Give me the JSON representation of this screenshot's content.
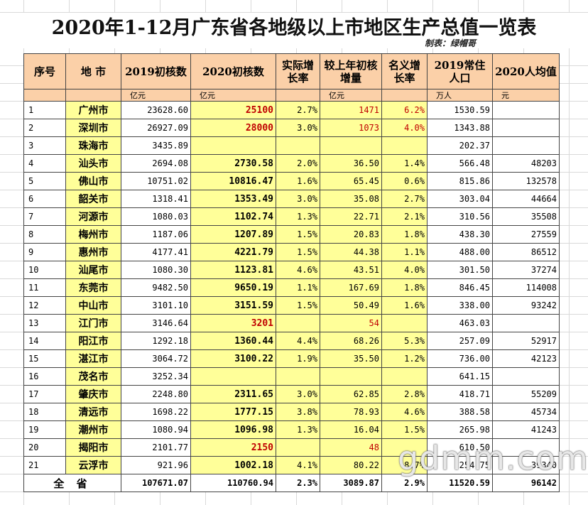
{
  "header": {
    "title": "2020年1-12月广东省各地级以上市地区生产总值一览表",
    "maker": "制表：绿帽哥"
  },
  "table": {
    "headers": [
      "序号",
      "地  市",
      "2019初核数",
      "2020初核数",
      "实际增长率",
      "较上年初核增量",
      "名义增长率",
      "2019常住人口",
      "2020人均值"
    ],
    "units": [
      null,
      null,
      "亿元",
      "亿元",
      null,
      "亿元",
      null,
      "万人",
      "元"
    ],
    "rows": [
      [
        "1",
        "广州市",
        "23628.60",
        {
          "text": "25100",
          "color": "#c00000"
        },
        "2.7%",
        {
          "text": "1471",
          "color": "#c00000"
        },
        {
          "text": "6.2%",
          "color": "#c00000"
        },
        "1530.59",
        null
      ],
      [
        "2",
        "深圳市",
        "26927.09",
        {
          "text": "28000",
          "color": "#c00000"
        },
        "3.0%",
        {
          "text": "1073",
          "color": "#c00000"
        },
        {
          "text": "4.0%",
          "color": "#c00000"
        },
        "1343.88",
        null
      ],
      [
        "3",
        "珠海市",
        "3435.89",
        null,
        null,
        null,
        null,
        "202.37",
        null
      ],
      [
        "4",
        "汕头市",
        "2694.08",
        "2730.58",
        "2.0%",
        "36.50",
        "1.4%",
        "566.48",
        "48203"
      ],
      [
        "5",
        "佛山市",
        "10751.02",
        "10816.47",
        "1.6%",
        "65.45",
        "0.6%",
        "815.86",
        "132578"
      ],
      [
        "6",
        "韶关市",
        "1318.41",
        "1353.49",
        "3.0%",
        "35.08",
        "2.7%",
        "303.04",
        "44664"
      ],
      [
        "7",
        "河源市",
        "1080.03",
        "1102.74",
        "1.3%",
        "22.71",
        "2.1%",
        "310.56",
        "35508"
      ],
      [
        "8",
        "梅州市",
        "1187.06",
        "1207.89",
        "1.5%",
        "20.83",
        "1.8%",
        "438.30",
        "27559"
      ],
      [
        "9",
        "惠州市",
        "4177.41",
        "4221.79",
        "1.5%",
        "44.38",
        "1.1%",
        "488.00",
        "86512"
      ],
      [
        "10",
        "汕尾市",
        "1080.30",
        "1123.81",
        "4.6%",
        "43.51",
        "4.0%",
        "301.50",
        "37274"
      ],
      [
        "11",
        "东莞市",
        "9482.50",
        "9650.19",
        "1.1%",
        "167.69",
        "1.8%",
        "846.45",
        "114008"
      ],
      [
        "12",
        "中山市",
        "3101.10",
        "3151.59",
        "1.5%",
        "50.49",
        "1.6%",
        "338.00",
        "93242"
      ],
      [
        "13",
        "江门市",
        "3146.64",
        {
          "text": "3201",
          "color": "#c00000"
        },
        null,
        {
          "text": "54",
          "color": "#c00000"
        },
        null,
        "463.03",
        null
      ],
      [
        "14",
        "阳江市",
        "1292.18",
        "1360.44",
        "4.4%",
        "68.26",
        "5.3%",
        "257.09",
        "52917"
      ],
      [
        "15",
        "湛江市",
        "3064.72",
        "3100.22",
        "1.9%",
        "35.50",
        "1.2%",
        "736.00",
        "42123"
      ],
      [
        "16",
        "茂名市",
        "3252.34",
        null,
        null,
        null,
        null,
        "641.15",
        null
      ],
      [
        "17",
        "肇庆市",
        "2248.80",
        "2311.65",
        "3.0%",
        "62.85",
        "2.8%",
        "418.71",
        "55209"
      ],
      [
        "18",
        "清远市",
        "1698.22",
        "1777.15",
        "3.8%",
        "78.93",
        "4.6%",
        "388.58",
        "45734"
      ],
      [
        "19",
        "潮州市",
        "1080.94",
        "1096.98",
        "1.3%",
        "16.04",
        "1.5%",
        "265.98",
        "41243"
      ],
      [
        "20",
        "揭阳市",
        "2101.77",
        {
          "text": "2150",
          "color": "#c00000"
        },
        null,
        {
          "text": "48",
          "color": "#c00000"
        },
        null,
        "610.50",
        null
      ],
      [
        "21",
        "云浮市",
        "921.96",
        "1002.18",
        "4.1%",
        "80.22",
        "8.7%",
        "254.75",
        "39340"
      ]
    ],
    "total": [
      "全  省",
      "107671.07",
      "110760.94",
      "2.3%",
      "3089.87",
      "2.9%",
      "11520.59",
      "96142"
    ]
  },
  "watermark": "gdmm.com"
}
